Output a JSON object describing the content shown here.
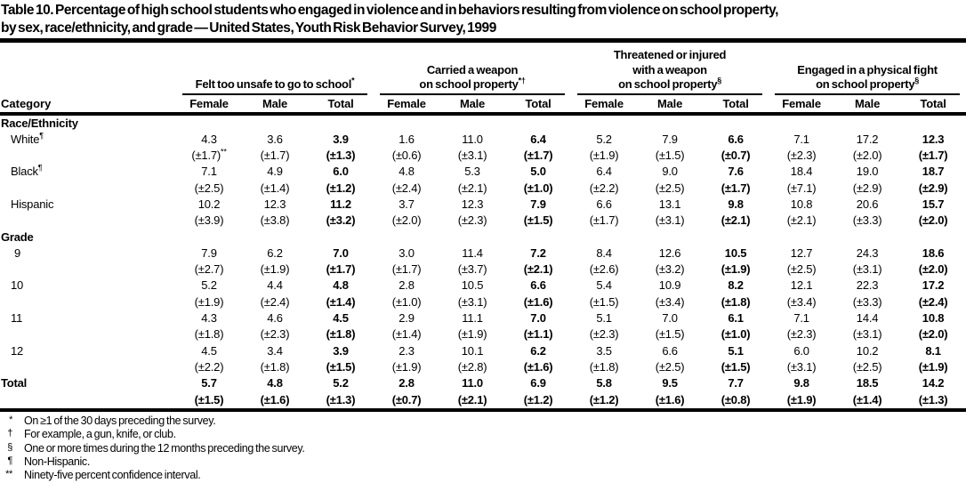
{
  "title_lines": [
    "Table 10. Percentage of high school students who engaged in violence and in behaviors resulting from violence on school property,",
    "by sex, race/ethnicity, and grade — United States, Youth Risk Behavior Survey, 1999"
  ],
  "table": {
    "category_header": "Category",
    "groups": [
      {
        "lines": [
          "Felt too unsafe to go to school"
        ],
        "sup": "*",
        "subcolumns": [
          "Female",
          "Male",
          "Total"
        ]
      },
      {
        "lines": [
          "Carried a weapon",
          "on school property"
        ],
        "sup": "*†",
        "subcolumns": [
          "Female",
          "Male",
          "Total"
        ]
      },
      {
        "lines": [
          "Threatened or injured",
          "with a weapon",
          "on school property"
        ],
        "sup": "§",
        "subcolumns": [
          "Female",
          "Male",
          "Total"
        ]
      },
      {
        "lines": [
          "Engaged in a physical fight",
          "on school property"
        ],
        "sup": "§",
        "subcolumns": [
          "Female",
          "Male",
          "Total"
        ]
      }
    ],
    "sections": [
      {
        "name": "Race/Ethnicity",
        "rows": [
          {
            "label": "White",
            "label_sup": "¶",
            "values": [
              "4.3",
              "3.6",
              "3.9",
              "1.6",
              "11.0",
              "6.4",
              "5.2",
              "7.9",
              "6.6",
              "7.1",
              "17.2",
              "12.3"
            ],
            "ci": [
              "(±1.7)**",
              "(±1.7)",
              "(±1.3)",
              "(±0.6)",
              "(±3.1)",
              "(±1.7)",
              "(±1.9)",
              "(±1.5)",
              "(±0.7)",
              "(±2.3)",
              "(±2.0)",
              "(±1.7)"
            ]
          },
          {
            "label": "Black",
            "label_sup": "¶",
            "values": [
              "7.1",
              "4.9",
              "6.0",
              "4.8",
              "5.3",
              "5.0",
              "6.4",
              "9.0",
              "7.6",
              "18.4",
              "19.0",
              "18.7"
            ],
            "ci": [
              "(±2.5)",
              "(±1.4)",
              "(±1.2)",
              "(±2.4)",
              "(±2.1)",
              "(±1.0)",
              "(±2.2)",
              "(±2.5)",
              "(±1.7)",
              "(±7.1)",
              "(±2.9)",
              "(±2.9)"
            ]
          },
          {
            "label": "Hispanic",
            "label_sup": "",
            "values": [
              "10.2",
              "12.3",
              "11.2",
              "3.7",
              "12.3",
              "7.9",
              "6.6",
              "13.1",
              "9.8",
              "10.8",
              "20.6",
              "15.7"
            ],
            "ci": [
              "(±3.9)",
              "(±3.8)",
              "(±3.2)",
              "(±2.0)",
              "(±2.3)",
              "(±1.5)",
              "(±1.7)",
              "(±3.1)",
              "(±2.1)",
              "(±2.1)",
              "(±3.3)",
              "(±2.0)"
            ]
          }
        ]
      },
      {
        "name": "Grade",
        "rows": [
          {
            "label": "9",
            "label_sup": "",
            "values": [
              "7.9",
              "6.2",
              "7.0",
              "3.0",
              "11.4",
              "7.2",
              "8.4",
              "12.6",
              "10.5",
              "12.7",
              "24.3",
              "18.6"
            ],
            "ci": [
              "(±2.7)",
              "(±1.9)",
              "(±1.7)",
              "(±1.7)",
              "(±3.7)",
              "(±2.1)",
              "(±2.6)",
              "(±3.2)",
              "(±1.9)",
              "(±2.5)",
              "(±3.1)",
              "(±2.0)"
            ]
          },
          {
            "label": "10",
            "label_sup": "",
            "values": [
              "5.2",
              "4.4",
              "4.8",
              "2.8",
              "10.5",
              "6.6",
              "5.4",
              "10.9",
              "8.2",
              "12.1",
              "22.3",
              "17.2"
            ],
            "ci": [
              "(±1.9)",
              "(±2.4)",
              "(±1.4)",
              "(±1.0)",
              "(±3.1)",
              "(±1.6)",
              "(±1.5)",
              "(±3.4)",
              "(±1.8)",
              "(±3.4)",
              "(±3.3)",
              "(±2.4)"
            ]
          },
          {
            "label": "11",
            "label_sup": "",
            "values": [
              "4.3",
              "4.6",
              "4.5",
              "2.9",
              "11.1",
              "7.0",
              "5.1",
              "7.0",
              "6.1",
              "7.1",
              "14.4",
              "10.8"
            ],
            "ci": [
              "(±1.8)",
              "(±2.3)",
              "(±1.8)",
              "(±1.4)",
              "(±1.9)",
              "(±1.1)",
              "(±2.3)",
              "(±1.5)",
              "(±1.0)",
              "(±2.3)",
              "(±3.1)",
              "(±2.0)"
            ]
          },
          {
            "label": "12",
            "label_sup": "",
            "values": [
              "4.5",
              "3.4",
              "3.9",
              "2.3",
              "10.1",
              "6.2",
              "3.5",
              "6.6",
              "5.1",
              "6.0",
              "10.2",
              "8.1"
            ],
            "ci": [
              "(±2.2)",
              "(±1.8)",
              "(±1.5)",
              "(±1.9)",
              "(±2.8)",
              "(±1.6)",
              "(±1.8)",
              "(±2.5)",
              "(±1.5)",
              "(±3.1)",
              "(±2.5)",
              "(±1.9)"
            ]
          }
        ]
      }
    ],
    "total_row": {
      "label": "Total",
      "label_sup": "",
      "values": [
        "5.7",
        "4.8",
        "5.2",
        "2.8",
        "11.0",
        "6.9",
        "5.8",
        "9.5",
        "7.7",
        "9.8",
        "18.5",
        "14.2"
      ],
      "ci": [
        "(±1.5)",
        "(±1.6)",
        "(±1.3)",
        "(±0.7)",
        "(±2.1)",
        "(±1.2)",
        "(±1.2)",
        "(±1.6)",
        "(±0.8)",
        "(±1.9)",
        "(±1.4)",
        "(±1.3)"
      ]
    }
  },
  "footnotes": [
    {
      "marker": "*",
      "text": "On ≥1 of the 30 days preceding the survey."
    },
    {
      "marker": "†",
      "text": "For example, a gun, knife, or club."
    },
    {
      "marker": "§",
      "text": "One or more times during the 12 months preceding the survey."
    },
    {
      "marker": "¶",
      "text": "Non-Hispanic."
    },
    {
      "marker": "**",
      "text": "Ninety-five percent confidence interval."
    }
  ]
}
